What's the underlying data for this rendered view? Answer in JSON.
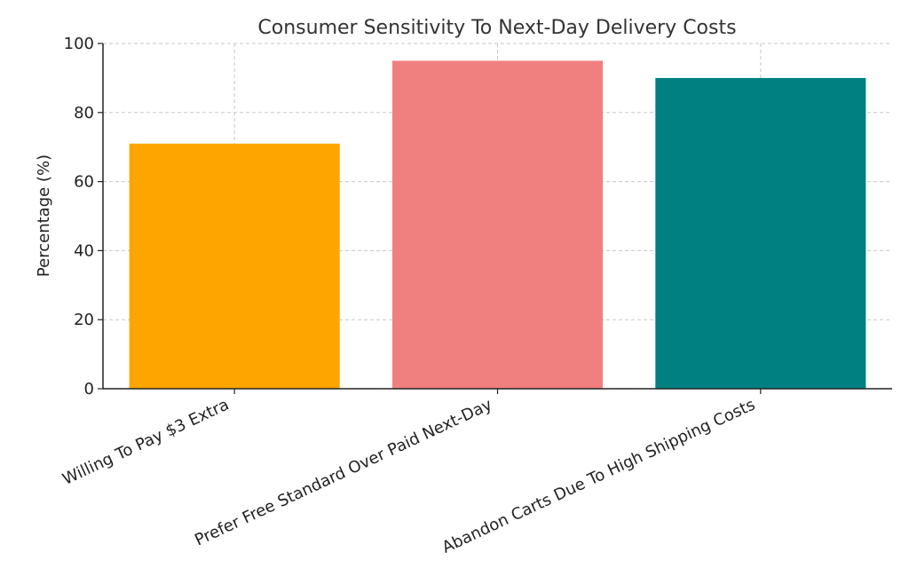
{
  "chart_data": {
    "type": "bar",
    "title": "Consumer Sensitivity To Next-Day Delivery Costs",
    "xlabel": "",
    "ylabel": "Percentage (%)",
    "ylim": [
      0,
      100
    ],
    "yticks": [
      0,
      20,
      40,
      60,
      80,
      100
    ],
    "categories": [
      "Willing To Pay $3 Extra",
      "Prefer Free Standard Over Paid Next-Day",
      "Abandon Carts Due To High Shipping Costs"
    ],
    "values": [
      71,
      95,
      90
    ],
    "colors": [
      "#ffa500",
      "#f08080",
      "#008080"
    ],
    "grid": true,
    "legend": "none"
  }
}
